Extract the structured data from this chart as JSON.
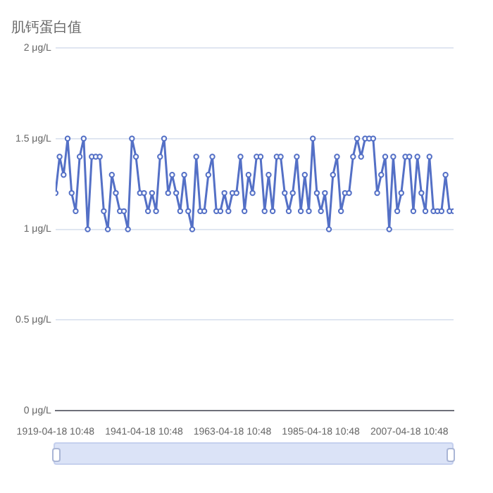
{
  "chart_data": {
    "type": "line",
    "title": "肌钙蛋白值",
    "x": [
      "1919-04-18T10:48",
      "1920-04-18T10:48",
      "1921-04-18T10:48",
      "1922-04-18T10:48",
      "1923-04-18T10:48",
      "1924-04-18T10:48",
      "1925-04-18T10:48",
      "1926-04-18T10:48",
      "1927-04-18T10:48",
      "1928-04-18T10:48",
      "1929-04-18T10:48",
      "1930-04-18T10:48",
      "1931-04-18T10:48",
      "1932-04-18T10:48",
      "1933-04-18T10:48",
      "1934-04-18T10:48",
      "1935-04-18T10:48",
      "1936-04-18T10:48",
      "1937-04-18T10:48",
      "1938-04-18T10:48",
      "1939-04-18T10:48",
      "1940-04-18T10:48",
      "1941-04-18T10:48",
      "1942-04-18T10:48",
      "1943-04-18T10:48",
      "1944-04-18T10:48",
      "1945-04-18T10:48",
      "1946-04-18T10:48",
      "1947-04-18T10:48",
      "1948-04-18T10:48",
      "1949-04-18T10:48",
      "1950-04-18T10:48",
      "1951-04-18T10:48",
      "1952-04-18T10:48",
      "1953-04-18T10:48",
      "1954-04-18T10:48",
      "1955-04-18T10:48",
      "1956-04-18T10:48",
      "1957-04-18T10:48",
      "1958-04-18T10:48",
      "1959-04-18T10:48",
      "1960-04-18T10:48",
      "1961-04-18T10:48",
      "1962-04-18T10:48",
      "1963-04-18T10:48",
      "1964-04-18T10:48",
      "1965-04-18T10:48",
      "1966-04-18T10:48",
      "1967-04-18T10:48",
      "1968-04-18T10:48",
      "1969-04-18T10:48",
      "1970-04-18T10:48",
      "1971-04-18T10:48",
      "1972-04-18T10:48",
      "1973-04-18T10:48",
      "1974-04-18T10:48",
      "1975-04-18T10:48",
      "1976-04-18T10:48",
      "1977-04-18T10:48",
      "1978-04-18T10:48",
      "1979-04-18T10:48",
      "1980-04-18T10:48",
      "1981-04-18T10:48",
      "1982-04-18T10:48",
      "1983-04-18T10:48",
      "1984-04-18T10:48",
      "1985-04-18T10:48",
      "1986-04-18T10:48",
      "1987-04-18T10:48",
      "1988-04-18T10:48",
      "1989-04-18T10:48",
      "1990-04-18T10:48",
      "1991-04-18T10:48",
      "1992-04-18T10:48",
      "1993-04-18T10:48",
      "1994-04-18T10:48",
      "1995-04-18T10:48",
      "1996-04-18T10:48",
      "1997-04-18T10:48",
      "1998-04-18T10:48",
      "1999-04-18T10:48",
      "2000-04-18T10:48",
      "2001-04-18T10:48",
      "2002-04-18T10:48",
      "2003-04-18T10:48",
      "2004-04-18T10:48",
      "2005-04-18T10:48",
      "2006-04-18T10:48",
      "2007-04-18T10:48",
      "2008-04-18T10:48",
      "2009-04-18T10:48",
      "2010-04-18T10:48",
      "2011-04-18T10:48",
      "2012-04-18T10:48",
      "2013-04-18T10:48",
      "2014-04-18T10:48",
      "2015-04-18T10:48",
      "2016-04-18T10:48",
      "2017-04-18T10:48",
      "2018-04-18T10:48"
    ],
    "series": [
      {
        "color": "#5470c6",
        "values": [
          1.2,
          1.4,
          1.3,
          1.5,
          1.2,
          1.1,
          1.4,
          1.5,
          1.0,
          1.4,
          1.4,
          1.4,
          1.1,
          1.0,
          1.3,
          1.2,
          1.1,
          1.1,
          1.0,
          1.5,
          1.4,
          1.2,
          1.2,
          1.1,
          1.2,
          1.1,
          1.4,
          1.5,
          1.2,
          1.3,
          1.2,
          1.1,
          1.3,
          1.1,
          1.0,
          1.4,
          1.1,
          1.1,
          1.3,
          1.4,
          1.1,
          1.1,
          1.2,
          1.1,
          1.2,
          1.2,
          1.4,
          1.1,
          1.3,
          1.2,
          1.4,
          1.4,
          1.1,
          1.3,
          1.1,
          1.4,
          1.4,
          1.2,
          1.1,
          1.2,
          1.4,
          1.1,
          1.3,
          1.1,
          1.5,
          1.2,
          1.1,
          1.2,
          1.0,
          1.3,
          1.4,
          1.1,
          1.2,
          1.2,
          1.4,
          1.5,
          1.4,
          1.5,
          1.5,
          1.5,
          1.2,
          1.3,
          1.4,
          1.0,
          1.4,
          1.1,
          1.2,
          1.4,
          1.4,
          1.1,
          1.4,
          1.2,
          1.1,
          1.4,
          1.1,
          1.1,
          1.1,
          1.3,
          1.1,
          1.1
        ]
      }
    ],
    "xlim": [
      "1919-04-18T10:48",
      "2018-04-18T10:48"
    ],
    "xticks": [
      {
        "value": "1919-04-18T10:48",
        "label": "1919-04-18 10:48"
      },
      {
        "value": "1941-04-18T10:48",
        "label": "1941-04-18 10:48"
      },
      {
        "value": "1963-04-18T10:48",
        "label": "1963-04-18 10:48"
      },
      {
        "value": "1985-04-18T10:48",
        "label": "1985-04-18 10:48"
      },
      {
        "value": "2007-04-18T10:48",
        "label": "2007-04-18 10:48"
      }
    ],
    "ylim": [
      0,
      2
    ],
    "yticks": [
      {
        "value": 0,
        "label": "0 μg/L"
      },
      {
        "value": 0.5,
        "label": "0.5 μg/L"
      },
      {
        "value": 1,
        "label": "1 μg/L"
      },
      {
        "value": 1.5,
        "label": "1.5 μg/L"
      },
      {
        "value": 2,
        "label": "2 μg/L"
      }
    ],
    "grid": "y",
    "marker": "circle",
    "line_style": "solid",
    "legend": false
  }
}
